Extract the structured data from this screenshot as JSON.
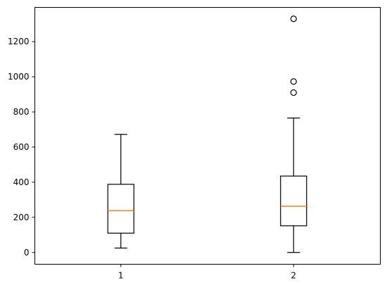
{
  "chart_data": {
    "type": "box",
    "title": "",
    "xlabel": "",
    "ylabel": "",
    "categories": [
      "1",
      "2"
    ],
    "ylim": [
      -67,
      1395
    ],
    "yticks": [
      0,
      200,
      400,
      600,
      800,
      1000,
      1200
    ],
    "grid": false,
    "series": [
      {
        "category": "1",
        "whisker_low": 25,
        "q1": 110,
        "median": 238,
        "q3": 388,
        "whisker_high": 672,
        "outliers": []
      },
      {
        "category": "2",
        "whisker_low": 0,
        "q1": 152,
        "median": 263,
        "q3": 435,
        "whisker_high": 765,
        "outliers": [
          910,
          973,
          1330
        ]
      }
    ],
    "colors": {
      "box": "#000000",
      "median": "#ff7f0e",
      "outlier_edge": "#000000",
      "axes": "#000000",
      "background": "#ffffff"
    }
  }
}
